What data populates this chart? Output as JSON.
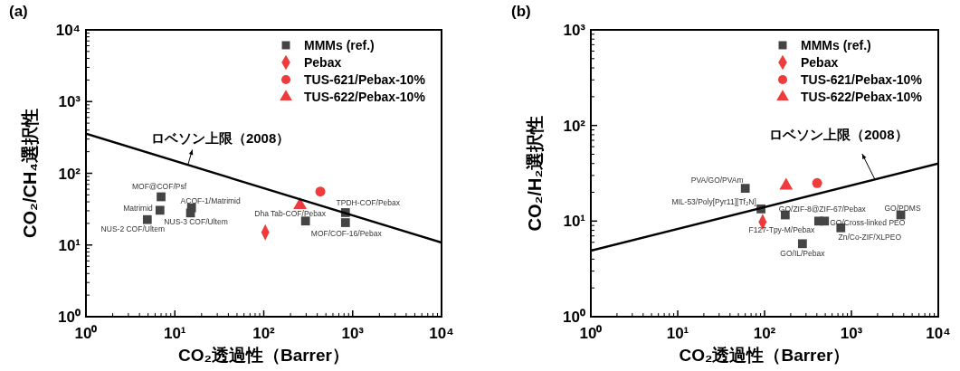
{
  "chart_data": [
    {
      "type": "scatter",
      "title": "(a)",
      "xlabel": "CO₂透過性（Barrer）",
      "ylabel": "CO₂/CH₄選択性",
      "log": "xy",
      "legend": "top right",
      "xlim": [
        1,
        10000
      ],
      "ylim": [
        1,
        10000
      ],
      "xticks": [
        {
          "value": 1,
          "label": "10⁰"
        },
        {
          "value": 10,
          "label": "10¹"
        },
        {
          "value": 100,
          "label": "10²"
        },
        {
          "value": 1000,
          "label": "10³"
        },
        {
          "value": 10000,
          "label": "10⁴"
        }
      ],
      "yticks": [
        {
          "value": 1,
          "label": "10⁰"
        },
        {
          "value": 10,
          "label": "10¹"
        },
        {
          "value": 100,
          "label": "10²"
        },
        {
          "value": 1000,
          "label": "10³"
        },
        {
          "value": 10000,
          "label": "10⁴"
        }
      ],
      "series": [
        {
          "name": "MMMs (ref.)",
          "color": "#444444",
          "marker": "square",
          "x": [
            7,
            6.8,
            4.9,
            15.4,
            15,
            295,
            830,
            830
          ],
          "values": [
            47,
            30.5,
            22.6,
            33,
            28,
            21.6,
            28.3,
            20.5
          ]
        },
        {
          "name": "Pebax",
          "color": "#ee3b3b",
          "marker": "diamond",
          "x": [
            104
          ],
          "values": [
            15
          ]
        },
        {
          "name": "TUS-621/Pebax-10%",
          "color": "#ee3b3b",
          "marker": "circle",
          "x": [
            433
          ],
          "values": [
            55.6
          ]
        },
        {
          "name": "TUS-622/Pebax-10%",
          "color": "#ee3b3b",
          "marker": "triangle",
          "x": [
            256
          ],
          "values": [
            36
          ]
        },
        {
          "type": "line",
          "color": "#000000",
          "x": [
            1,
            10000
          ],
          "values": [
            357,
            10.8
          ]
        }
      ],
      "annotations": [
        {
          "text": "MOF@COF/Psf",
          "x": 7,
          "y": 47
        },
        {
          "text": "Matrimid",
          "x": 6.8,
          "y": 30.5
        },
        {
          "text": "NUS-2 COF/Ultem",
          "x": 4.9,
          "y": 22.6
        },
        {
          "text": "ACOF-1/Matrimid",
          "x": 15.4,
          "y": 33
        },
        {
          "text": "NUS-3 COF/Ultem",
          "x": 15,
          "y": 28
        },
        {
          "text": "Dha Tab-COF/Pebax",
          "x": 295,
          "y": 21.6
        },
        {
          "text": "TPDH-COF/Pebax",
          "x": 830,
          "y": 28.3
        },
        {
          "text": "MOF/COF-16/Pebax",
          "x": 830,
          "y": 20.5
        },
        {
          "text": "ロベソン上限（2008）",
          "x": 14,
          "y": 130
        }
      ]
    },
    {
      "type": "scatter",
      "title": "(b)",
      "xlabel": "CO₂透過性（Barrer）",
      "ylabel": "CO₂/H₂選択性",
      "log": "xy",
      "legend": "top right",
      "xlim": [
        1,
        10000
      ],
      "ylim": [
        1,
        1000
      ],
      "xticks": [
        {
          "value": 1,
          "label": "10⁰"
        },
        {
          "value": 10,
          "label": "10¹"
        },
        {
          "value": 100,
          "label": "10²"
        },
        {
          "value": 1000,
          "label": "10³"
        },
        {
          "value": 10000,
          "label": "10⁴"
        }
      ],
      "yticks": [
        {
          "value": 1,
          "label": "10⁰"
        },
        {
          "value": 10,
          "label": "10¹"
        },
        {
          "value": 100,
          "label": "10²"
        },
        {
          "value": 1000,
          "label": "10³"
        }
      ],
      "series": [
        {
          "name": "MMMs (ref.)",
          "color": "#444444",
          "marker": "square",
          "x": [
            60,
            91,
            173,
            420,
            490,
            755,
            273,
            3700
          ],
          "values": [
            22,
            13.4,
            11.6,
            10,
            10,
            8.5,
            5.8,
            11.6
          ]
        },
        {
          "name": "Pebax",
          "color": "#ee3b3b",
          "marker": "diamond",
          "x": [
            95
          ],
          "values": [
            9.8
          ]
        },
        {
          "name": "TUS-621/Pebax-10%",
          "color": "#ee3b3b",
          "marker": "circle",
          "x": [
            403
          ],
          "values": [
            25
          ]
        },
        {
          "name": "TUS-622/Pebax-10%",
          "color": "#ee3b3b",
          "marker": "triangle",
          "x": [
            177
          ],
          "values": [
            23.5
          ]
        },
        {
          "type": "line",
          "color": "#000000",
          "x": [
            1,
            10000
          ],
          "values": [
            4.9,
            40
          ]
        }
      ],
      "annotations": [
        {
          "text": "PVA/GO/PVAm",
          "x": 60,
          "y": 22
        },
        {
          "text": "MIL-53/Poly[Pyr11][Tf₂N]",
          "x": 91,
          "y": 13.4
        },
        {
          "text": "GO/ZIF-8@ZIF-67/Pebax",
          "x": 173,
          "y": 11.6
        },
        {
          "text": "GO/Cross-linked PEO",
          "x": 490,
          "y": 10
        },
        {
          "text": "Zn/Co-ZIF/XLPEO",
          "x": 755,
          "y": 8.5
        },
        {
          "text": "GO/IL/Pebax",
          "x": 273,
          "y": 5.8
        },
        {
          "text": "GO/PDMS",
          "x": 3700,
          "y": 11.6
        },
        {
          "text": "F127-Tpy-M/Pebax",
          "x": 95,
          "y": 9.8
        },
        {
          "text": "ロベソン上限（2008）",
          "x": 1860,
          "y": 27.4
        }
      ]
    }
  ]
}
